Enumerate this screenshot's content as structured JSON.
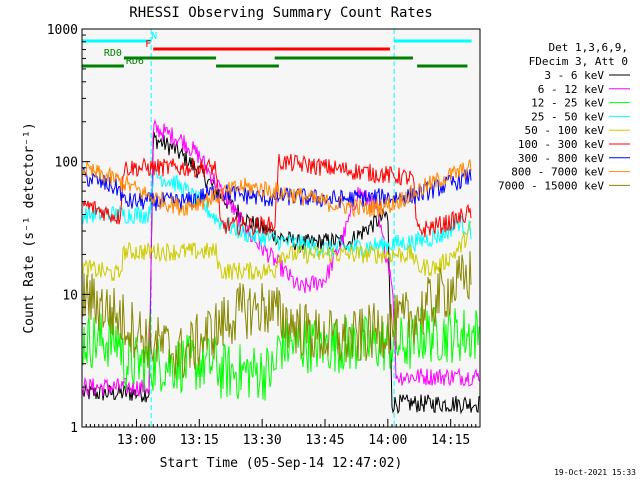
{
  "chart_data": {
    "type": "line",
    "title": "RHESSI Observing Summary Count Rates",
    "xlabel": "Start Time (05-Sep-14 12:47:02)",
    "ylabel": "Count Rate (s⁻¹ detector⁻¹)",
    "yscale": "log",
    "ylim": [
      1,
      1000
    ],
    "xlim_minutes": [
      0,
      95
    ],
    "x_ticks": [
      {
        "label": "13:00",
        "min": 13
      },
      {
        "label": "13:15",
        "min": 28
      },
      {
        "label": "13:30",
        "min": 43
      },
      {
        "label": "13:45",
        "min": 58
      },
      {
        "label": "14:00",
        "min": 73
      },
      {
        "label": "14:15",
        "min": 88
      }
    ],
    "y_ticks": [
      {
        "label": "1",
        "v": 1
      },
      {
        "label": "10",
        "v": 10
      },
      {
        "label": "100",
        "v": 100
      },
      {
        "label": "1000",
        "v": 1000
      }
    ],
    "legend_header": [
      "Det 1,3,6,9,",
      "FDecim 3, Att 0"
    ],
    "legend_position": "right",
    "timestamp": "19-Oct-2021 15:33",
    "night_intervals": [
      [
        0,
        16.5
      ],
      [
        74.5,
        95
      ]
    ],
    "flags": [
      {
        "label": "N",
        "color": "#00ffff",
        "segments": [
          [
            0,
            16.5
          ],
          [
            74.5,
            93
          ]
        ]
      },
      {
        "label": "F",
        "color": "#ff0000",
        "segments": [
          [
            17,
            73.5
          ]
        ]
      },
      {
        "label": "RD0",
        "color": "#008000",
        "segments": [
          [
            10,
            32
          ],
          [
            46,
            79
          ]
        ]
      },
      {
        "label": "RD6",
        "color": "#008000",
        "segments": [
          [
            0,
            10
          ],
          [
            32,
            47
          ],
          [
            80,
            92
          ]
        ]
      }
    ],
    "series": [
      {
        "name": "3 - 6 keV",
        "color": "#000000",
        "points": [
          [
            0,
            1.8
          ],
          [
            16,
            1.8
          ],
          [
            17,
            150
          ],
          [
            22,
            125
          ],
          [
            28,
            85
          ],
          [
            34,
            52
          ],
          [
            40,
            35
          ],
          [
            46,
            28
          ],
          [
            52,
            24
          ],
          [
            58,
            25
          ],
          [
            64,
            25
          ],
          [
            70,
            35
          ],
          [
            73,
            40
          ],
          [
            74,
            1.5
          ],
          [
            95,
            1.5
          ]
        ]
      },
      {
        "name": "6 - 12 keV",
        "color": "#ff00ff",
        "points": [
          [
            0,
            2.0
          ],
          [
            16,
            2.0
          ],
          [
            17,
            180
          ],
          [
            20,
            165
          ],
          [
            24,
            145
          ],
          [
            28,
            110
          ],
          [
            34,
            55
          ],
          [
            40,
            28
          ],
          [
            46,
            18
          ],
          [
            52,
            11
          ],
          [
            58,
            13
          ],
          [
            62,
            25
          ],
          [
            66,
            60
          ],
          [
            70,
            45
          ],
          [
            74,
            13
          ],
          [
            75,
            2.4
          ],
          [
            95,
            2.4
          ]
        ]
      },
      {
        "name": "12 - 25 keV",
        "color": "#00ff00",
        "points": [
          [
            0,
            4.5
          ],
          [
            9,
            4.5
          ],
          [
            10,
            3.0
          ],
          [
            32,
            3.0
          ],
          [
            33,
            2.6
          ],
          [
            46,
            2.6
          ],
          [
            47,
            4.2
          ],
          [
            79,
            4.2
          ],
          [
            80,
            5.0
          ],
          [
            95,
            5.0
          ]
        ]
      },
      {
        "name": "25 - 50 keV",
        "color": "#00ffff",
        "points": [
          [
            0,
            40
          ],
          [
            16,
            40
          ],
          [
            17,
            80
          ],
          [
            22,
            70
          ],
          [
            28,
            50
          ],
          [
            33,
            35
          ],
          [
            40,
            28
          ],
          [
            48,
            25
          ],
          [
            58,
            22
          ],
          [
            68,
            23
          ],
          [
            74,
            24
          ],
          [
            80,
            25
          ],
          [
            86,
            28
          ],
          [
            90,
            35
          ],
          [
            93,
            30
          ]
        ]
      },
      {
        "name": "50 - 100 keV",
        "color": "#cccc00",
        "points": [
          [
            0,
            16
          ],
          [
            9,
            14
          ],
          [
            10,
            21
          ],
          [
            32,
            21
          ],
          [
            33,
            15
          ],
          [
            46,
            15
          ],
          [
            47,
            20
          ],
          [
            79,
            20
          ],
          [
            80,
            16
          ],
          [
            85,
            16
          ],
          [
            90,
            22
          ],
          [
            93,
            32
          ]
        ]
      },
      {
        "name": "100 - 300 keV",
        "color": "#ff0000",
        "points": [
          [
            0,
            48
          ],
          [
            9,
            38
          ],
          [
            10,
            90
          ],
          [
            32,
            90
          ],
          [
            33,
            33
          ],
          [
            46,
            33
          ],
          [
            47,
            100
          ],
          [
            79,
            75
          ],
          [
            80,
            30
          ],
          [
            88,
            35
          ],
          [
            93,
            42
          ]
        ]
      },
      {
        "name": "300 - 800 keV",
        "color": "#0000ff",
        "points": [
          [
            0,
            78
          ],
          [
            9,
            62
          ],
          [
            10,
            50
          ],
          [
            25,
            50
          ],
          [
            32,
            60
          ],
          [
            40,
            55
          ],
          [
            46,
            52
          ],
          [
            47,
            55
          ],
          [
            60,
            52
          ],
          [
            79,
            55
          ],
          [
            86,
            65
          ],
          [
            93,
            78
          ]
        ]
      },
      {
        "name": "800 - 7000 keV",
        "color": "#ff8800",
        "points": [
          [
            0,
            88
          ],
          [
            9,
            72
          ],
          [
            16,
            55
          ],
          [
            24,
            45
          ],
          [
            32,
            55
          ],
          [
            38,
            65
          ],
          [
            44,
            62
          ],
          [
            52,
            55
          ],
          [
            60,
            48
          ],
          [
            68,
            44
          ],
          [
            74,
            48
          ],
          [
            80,
            60
          ],
          [
            86,
            75
          ],
          [
            93,
            90
          ]
        ]
      },
      {
        "name": "7000 - 15000 keV",
        "color": "#888800",
        "points": [
          [
            0,
            10
          ],
          [
            8,
            7
          ],
          [
            16,
            4.5
          ],
          [
            24,
            3.5
          ],
          [
            30,
            5
          ],
          [
            38,
            7.5
          ],
          [
            44,
            8
          ],
          [
            50,
            6
          ],
          [
            56,
            4.8
          ],
          [
            64,
            4.5
          ],
          [
            72,
            5.5
          ],
          [
            80,
            7
          ],
          [
            86,
            10
          ],
          [
            93,
            14
          ]
        ]
      }
    ]
  }
}
